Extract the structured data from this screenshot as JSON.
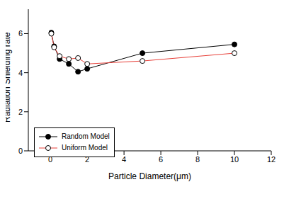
{
  "chart_data": {
    "type": "line",
    "x_label": "Particle Diameter(μm)",
    "y_label": "Radiation Shielding rate",
    "xlim": [
      -1.2,
      12
    ],
    "xticks": [
      0,
      2,
      4,
      6,
      8,
      10,
      12
    ],
    "ylim": [
      0,
      7.25
    ],
    "yticks": [
      0,
      2,
      4,
      6
    ],
    "grid": false,
    "legend": "lower left",
    "series": [
      {
        "name": "Random Model",
        "color": "#000000",
        "marker": "filled",
        "x": [
          0.05,
          0.2,
          0.5,
          1,
          1.5,
          2,
          5,
          10
        ],
        "values": [
          6.05,
          5.35,
          4.7,
          4.45,
          4.05,
          4.2,
          5.0,
          5.45
        ]
      },
      {
        "name": "Uniform Model",
        "color": "#e8413a",
        "marker": "open",
        "x": [
          0.05,
          0.2,
          0.5,
          1,
          1.5,
          2,
          5,
          10
        ],
        "values": [
          6.0,
          5.3,
          4.85,
          4.7,
          4.75,
          4.45,
          4.6,
          5.0
        ]
      }
    ]
  }
}
